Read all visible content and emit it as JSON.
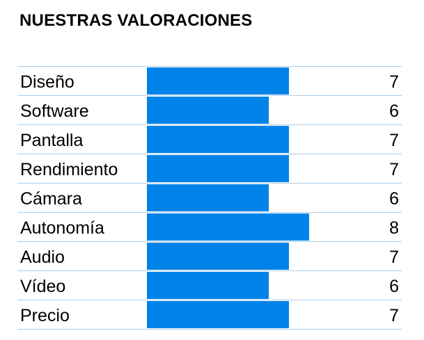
{
  "title": "NUESTRAS VALORACIONES",
  "colors": {
    "bar": "#0083e8",
    "row_border": "#a9cdea"
  },
  "chart_data": {
    "type": "bar",
    "orientation": "horizontal",
    "title": "NUESTRAS VALORACIONES",
    "categories": [
      "Diseño",
      "Software",
      "Pantalla",
      "Rendimiento",
      "Cámara",
      "Autonomía",
      "Audio",
      "Vídeo",
      "Precio"
    ],
    "values": [
      7,
      6,
      7,
      7,
      6,
      8,
      7,
      6,
      7
    ],
    "xlim": [
      0,
      10
    ],
    "grid": false,
    "legend": "none"
  },
  "rows": [
    {
      "label": "Diseño",
      "score": "7"
    },
    {
      "label": "Software",
      "score": "6"
    },
    {
      "label": "Pantalla",
      "score": "7"
    },
    {
      "label": "Rendimiento",
      "score": "7"
    },
    {
      "label": "Cámara",
      "score": "6"
    },
    {
      "label": "Autonomía",
      "score": "8"
    },
    {
      "label": "Audio",
      "score": "7"
    },
    {
      "label": "Vídeo",
      "score": "6"
    },
    {
      "label": "Precio",
      "score": "7"
    }
  ]
}
